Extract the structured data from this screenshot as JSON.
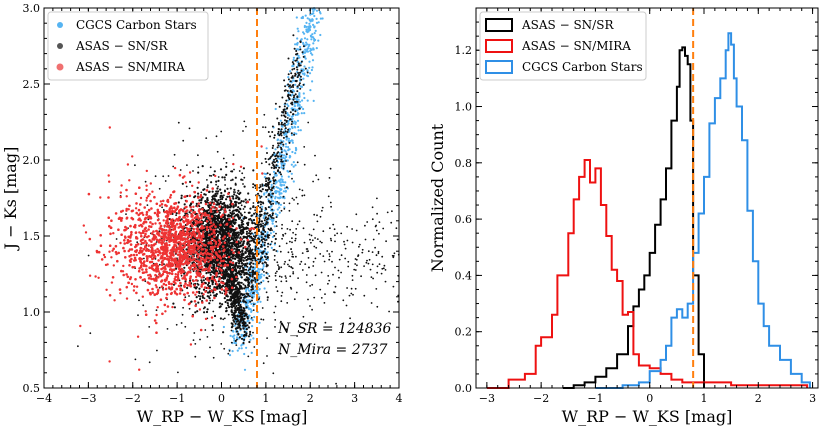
{
  "chart_data": [
    {
      "type": "scatter",
      "xlabel": "W_RP − W_KS [mag]",
      "ylabel": "J − Ks [mag]",
      "xlim": [
        -4,
        4
      ],
      "ylim": [
        0.5,
        3.0
      ],
      "xticks": [
        -4,
        -3,
        -2,
        -1,
        0,
        1,
        2,
        3,
        4
      ],
      "xtick_labels": [
        "−4",
        "−3",
        "−2",
        "−1",
        "0",
        "1",
        "2",
        "3",
        "4"
      ],
      "yticks": [
        0.5,
        1.0,
        1.5,
        2.0,
        2.5,
        3.0
      ],
      "ytick_labels": [
        "0.5",
        "1.0",
        "1.5",
        "2.0",
        "2.5",
        "3.0"
      ],
      "vline": {
        "x": 0.8,
        "color": "#ff7f0e",
        "style": "dashed"
      },
      "legend": {
        "position": "top-left",
        "entries": [
          {
            "label": "CGCS Carbon Stars",
            "color": "#56b4f2"
          },
          {
            "label": "ASAS − SN/SR",
            "color": "#333333"
          },
          {
            "label": "ASAS − SN/MIRA",
            "color": "#f05050"
          }
        ]
      },
      "annotations": {
        "n_sr": "N_SR = 124836",
        "n_mira": "N_Mira = 2737"
      },
      "series": [
        {
          "name": "CGCS Carbon Stars",
          "color": "#56b4f2",
          "distribution": "red giant branch sequence rising from (0.4, 0.8) to (2.0, 3.0)"
        },
        {
          "name": "ASAS − SN/SR",
          "color": "#111111",
          "count": 124836,
          "distribution": "dense core at x≈0, y≈1.45"
        },
        {
          "name": "ASAS − SN/MIRA",
          "color": "#ee3333",
          "count": 2737,
          "distribution": "broad cloud at x≈−1, y≈1.45"
        }
      ]
    },
    {
      "type": "line",
      "xlabel": "W_RP − W_KS [mag]",
      "ylabel": "Normalized Count",
      "xlim": [
        -3.2,
        3.1
      ],
      "ylim": [
        0.0,
        1.35
      ],
      "xticks": [
        -3,
        -2,
        -1,
        0,
        1,
        2,
        3
      ],
      "xtick_labels": [
        "−3",
        "−2",
        "−1",
        "0",
        "1",
        "2",
        "3"
      ],
      "yticks": [
        0.0,
        0.2,
        0.4,
        0.6,
        0.8,
        1.0,
        1.2
      ],
      "ytick_labels": [
        "0.0",
        "0.2",
        "0.4",
        "0.6",
        "0.8",
        "1.0",
        "1.2"
      ],
      "vline": {
        "x": 0.8,
        "color": "#ff7f0e",
        "style": "dashed"
      },
      "legend": {
        "position": "top-left",
        "entries": [
          {
            "label": "ASAS − SN/SR",
            "color": "#000000"
          },
          {
            "label": "ASAS − SN/MIRA",
            "color": "#ee1111"
          },
          {
            "label": "CGCS Carbon Stars",
            "color": "#2f8fe6"
          }
        ]
      },
      "series": [
        {
          "name": "ASAS − SN/SR",
          "color": "#000000",
          "x": [
            -1.6,
            -1.4,
            -1.2,
            -1.0,
            -0.8,
            -0.6,
            -0.4,
            -0.3,
            -0.2,
            -0.1,
            0.0,
            0.1,
            0.2,
            0.3,
            0.4,
            0.5,
            0.55,
            0.6,
            0.65,
            0.7,
            0.75,
            0.8,
            0.9,
            1.0
          ],
          "values": [
            0.0,
            0.01,
            0.02,
            0.04,
            0.07,
            0.12,
            0.22,
            0.29,
            0.35,
            0.4,
            0.48,
            0.58,
            0.67,
            0.78,
            0.95,
            1.07,
            1.2,
            1.21,
            1.18,
            1.15,
            0.95,
            0.4,
            0.12,
            0.0
          ]
        },
        {
          "name": "ASAS − SN/MIRA",
          "color": "#ee1111",
          "x": [
            -3.0,
            -2.6,
            -2.3,
            -2.1,
            -2.0,
            -1.8,
            -1.7,
            -1.5,
            -1.4,
            -1.3,
            -1.2,
            -1.1,
            -1.0,
            -0.9,
            -0.8,
            -0.7,
            -0.6,
            -0.5,
            -0.4,
            -0.3,
            -0.2,
            0.0,
            0.2,
            0.4,
            0.6,
            0.8,
            1.0,
            1.5,
            2.0,
            2.5,
            2.9
          ],
          "values": [
            0.0,
            0.03,
            0.05,
            0.15,
            0.18,
            0.26,
            0.4,
            0.55,
            0.67,
            0.75,
            0.81,
            0.73,
            0.78,
            0.65,
            0.54,
            0.42,
            0.38,
            0.26,
            0.27,
            0.12,
            0.08,
            0.07,
            0.05,
            0.03,
            0.02,
            0.02,
            0.02,
            0.01,
            0.01,
            0.01,
            0.0
          ]
        },
        {
          "name": "CGCS Carbon Stars",
          "color": "#2f8fe6",
          "x": [
            -1.0,
            -0.5,
            -0.2,
            0.0,
            0.2,
            0.3,
            0.4,
            0.5,
            0.6,
            0.7,
            0.8,
            0.9,
            1.0,
            1.1,
            1.2,
            1.3,
            1.4,
            1.45,
            1.5,
            1.55,
            1.6,
            1.7,
            1.8,
            1.9,
            2.0,
            2.1,
            2.2,
            2.4,
            2.6,
            2.8,
            2.95
          ],
          "values": [
            0.0,
            0.01,
            0.02,
            0.06,
            0.1,
            0.15,
            0.25,
            0.28,
            0.25,
            0.3,
            0.48,
            0.62,
            0.75,
            0.94,
            1.03,
            1.1,
            1.2,
            1.26,
            1.22,
            1.1,
            1.0,
            0.88,
            0.63,
            0.45,
            0.3,
            0.22,
            0.15,
            0.1,
            0.05,
            0.02,
            0.0
          ]
        }
      ]
    }
  ]
}
